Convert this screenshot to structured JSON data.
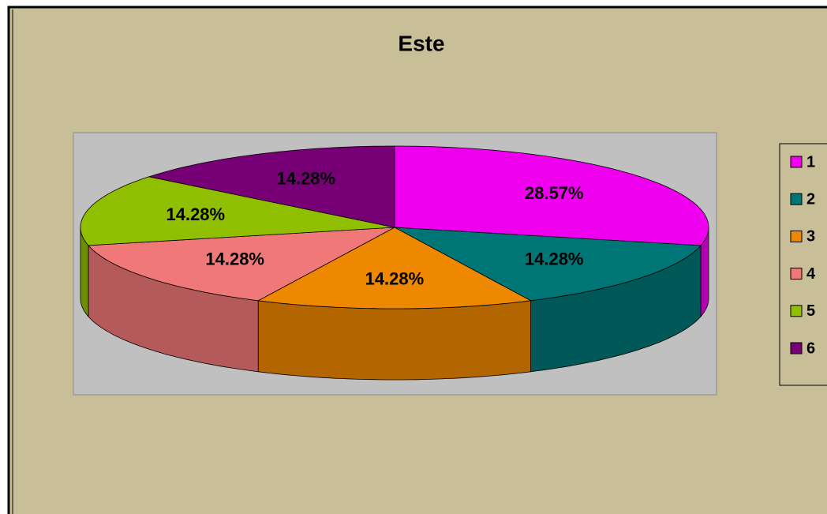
{
  "chart_data": {
    "type": "pie3d",
    "title": "Este",
    "categories": [
      "1",
      "2",
      "3",
      "4",
      "5",
      "6"
    ],
    "values": [
      28.57,
      14.28,
      14.28,
      14.28,
      14.28,
      14.28
    ],
    "value_labels": [
      "28.57%",
      "14.28%",
      "14.28%",
      "14.28%",
      "14.28%",
      "14.28%"
    ],
    "colors": [
      "#ee00ee",
      "#007575",
      "#ee8800",
      "#f07878",
      "#8fbf00",
      "#770077"
    ],
    "legend": "right"
  }
}
